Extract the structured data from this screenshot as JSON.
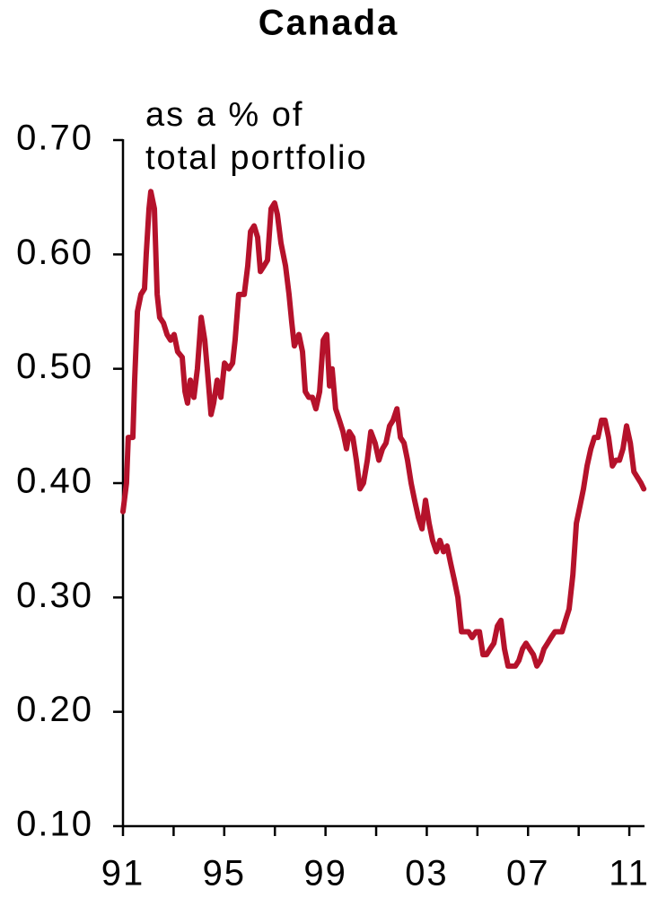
{
  "chart_data": {
    "type": "line",
    "title": "Canada",
    "annotation": [
      "as a % of",
      "total portfolio"
    ],
    "color": "#b5122b",
    "x": [
      1991.0,
      1991.14,
      1991.21,
      1991.39,
      1991.46,
      1991.57,
      1991.71,
      1991.85,
      1991.92,
      1992.03,
      1992.1,
      1992.24,
      1992.35,
      1992.45,
      1992.6,
      1992.74,
      1992.88,
      1993.02,
      1993.16,
      1993.34,
      1993.45,
      1993.55,
      1993.66,
      1993.8,
      1993.94,
      1994.09,
      1994.23,
      1994.33,
      1994.48,
      1994.58,
      1994.72,
      1994.87,
      1995.01,
      1995.18,
      1995.33,
      1995.43,
      1995.57,
      1995.79,
      1995.93,
      1996.04,
      1996.18,
      1996.32,
      1996.43,
      1996.57,
      1996.71,
      1996.85,
      1996.99,
      1997.1,
      1997.24,
      1997.42,
      1997.56,
      1997.67,
      1997.77,
      1997.95,
      1998.09,
      1998.2,
      1998.34,
      1998.48,
      1998.62,
      1998.77,
      1998.91,
      1999.05,
      1999.16,
      1999.26,
      1999.4,
      1999.55,
      1999.69,
      1999.83,
      1999.94,
      2000.08,
      2000.22,
      2000.36,
      2000.5,
      2000.65,
      2000.79,
      2000.96,
      2001.11,
      2001.25,
      2001.39,
      2001.53,
      2001.67,
      2001.82,
      2001.96,
      2002.1,
      2002.24,
      2002.38,
      2002.52,
      2002.67,
      2002.81,
      2002.95,
      2003.09,
      2003.23,
      2003.38,
      2003.52,
      2003.66,
      2003.8,
      2003.94,
      2004.09,
      2004.23,
      2004.37,
      2004.51,
      2004.65,
      2004.79,
      2004.94,
      2005.08,
      2005.22,
      2005.36,
      2005.5,
      2005.65,
      2005.79,
      2005.93,
      2006.07,
      2006.21,
      2006.35,
      2006.5,
      2006.64,
      2006.78,
      2006.92,
      2007.06,
      2007.21,
      2007.35,
      2007.49,
      2007.63,
      2007.77,
      2007.91,
      2008.06,
      2008.2,
      2008.34,
      2008.48,
      2008.62,
      2008.77,
      2008.91,
      2009.05,
      2009.19,
      2009.33,
      2009.48,
      2009.62,
      2009.76,
      2009.9,
      2010.04,
      2010.18,
      2010.33,
      2010.47,
      2010.61,
      2010.75,
      2010.89,
      2011.04,
      2011.18,
      2011.32,
      2011.46,
      2011.57
    ],
    "values": [
      0.375,
      0.4,
      0.44,
      0.44,
      0.49,
      0.55,
      0.565,
      0.57,
      0.6,
      0.64,
      0.655,
      0.64,
      0.565,
      0.545,
      0.54,
      0.53,
      0.525,
      0.53,
      0.515,
      0.51,
      0.48,
      0.47,
      0.49,
      0.475,
      0.5,
      0.545,
      0.525,
      0.5,
      0.46,
      0.47,
      0.49,
      0.475,
      0.505,
      0.5,
      0.505,
      0.525,
      0.565,
      0.565,
      0.59,
      0.62,
      0.625,
      0.615,
      0.585,
      0.59,
      0.595,
      0.64,
      0.645,
      0.635,
      0.61,
      0.59,
      0.565,
      0.54,
      0.52,
      0.53,
      0.515,
      0.48,
      0.475,
      0.475,
      0.465,
      0.48,
      0.525,
      0.53,
      0.485,
      0.5,
      0.465,
      0.455,
      0.445,
      0.43,
      0.445,
      0.44,
      0.42,
      0.395,
      0.4,
      0.42,
      0.445,
      0.435,
      0.42,
      0.43,
      0.435,
      0.45,
      0.455,
      0.465,
      0.44,
      0.435,
      0.42,
      0.4,
      0.385,
      0.37,
      0.36,
      0.385,
      0.365,
      0.35,
      0.34,
      0.35,
      0.34,
      0.345,
      0.33,
      0.315,
      0.3,
      0.27,
      0.27,
      0.27,
      0.265,
      0.27,
      0.27,
      0.25,
      0.25,
      0.255,
      0.26,
      0.275,
      0.28,
      0.255,
      0.24,
      0.24,
      0.24,
      0.245,
      0.255,
      0.26,
      0.255,
      0.25,
      0.24,
      0.245,
      0.255,
      0.26,
      0.265,
      0.27,
      0.27,
      0.27,
      0.28,
      0.29,
      0.32,
      0.365,
      0.38,
      0.395,
      0.415,
      0.43,
      0.44,
      0.44,
      0.455,
      0.455,
      0.44,
      0.415,
      0.42,
      0.42,
      0.43,
      0.45,
      0.435,
      0.41,
      0.405,
      0.4,
      0.395
    ],
    "xlim": [
      1991,
      2011.6
    ],
    "xticks": [
      {
        "value": 1991,
        "label": "91"
      },
      {
        "value": 1995,
        "label": "95"
      },
      {
        "value": 1999,
        "label": "99"
      },
      {
        "value": 2003,
        "label": "03"
      },
      {
        "value": 2007,
        "label": "07"
      },
      {
        "value": 2011,
        "label": "11"
      }
    ],
    "xminor_ticks": [
      1993,
      1997,
      2001,
      2005,
      2009
    ],
    "ylim": [
      0.1,
      0.7
    ],
    "yticks": [
      {
        "value": 0.1,
        "label": "0.10"
      },
      {
        "value": 0.2,
        "label": "0.20"
      },
      {
        "value": 0.3,
        "label": "0.30"
      },
      {
        "value": 0.4,
        "label": "0.40"
      },
      {
        "value": 0.5,
        "label": "0.50"
      },
      {
        "value": 0.6,
        "label": "0.60"
      },
      {
        "value": 0.7,
        "label": "0.70"
      }
    ],
    "grid": false
  }
}
